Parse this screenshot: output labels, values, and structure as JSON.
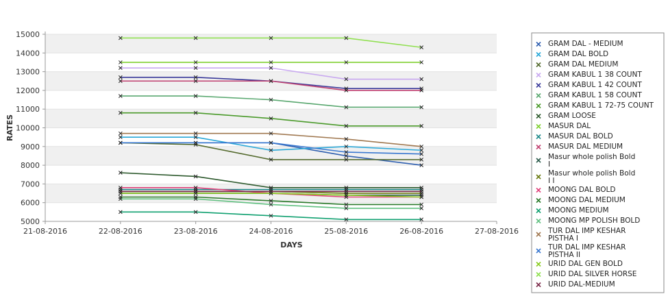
{
  "chart_data": {
    "type": "line",
    "title": "",
    "xlabel": "DAYS",
    "ylabel": "RATES",
    "x_ticks": [
      "21-08-2016",
      "22-08-2016",
      "23-08-2016",
      "24-08-2016",
      "25-08-2016",
      "26-08-2016",
      "27-08-2016"
    ],
    "categories": [
      "22-08-2016",
      "23-08-2016",
      "24-08-2016",
      "25-08-2016",
      "26-08-2016"
    ],
    "ylim": [
      5000,
      15000
    ],
    "y_ticks": [
      5000,
      6000,
      7000,
      8000,
      9000,
      10000,
      11000,
      12000,
      13000,
      14000,
      15000
    ],
    "grid": "horizontal bands",
    "legend_position": "right",
    "series": [
      {
        "name": "GRAM DAL - MEDIUM",
        "color": "#3060b0",
        "values": [
          9200,
          9200,
          9200,
          8500,
          8000
        ]
      },
      {
        "name": "GRAM DAL BOLD",
        "color": "#2aa8d8",
        "values": [
          9500,
          9500,
          8800,
          9000,
          8800
        ]
      },
      {
        "name": "GRAM DAL MEDIUM",
        "color": "#556b2f",
        "values": [
          9200,
          9100,
          8300,
          8300,
          8300
        ]
      },
      {
        "name": "GRAM KABUL 1 38 COUNT",
        "color": "#c8a8f0",
        "values": [
          13200,
          13200,
          13200,
          12600,
          12600
        ]
      },
      {
        "name": "GRAM KABUL 1 42 COUNT",
        "color": "#3a3a9a",
        "values": [
          12700,
          12700,
          12500,
          12100,
          12100
        ]
      },
      {
        "name": "GRAM KABUL 1 58 COUNT",
        "color": "#5aa870",
        "values": [
          11700,
          11700,
          11500,
          11100,
          11100
        ]
      },
      {
        "name": "GRAM KABUL 1 72-75 COUNT",
        "color": "#4a9a2a",
        "values": [
          10800,
          10800,
          10500,
          10100,
          10100
        ]
      },
      {
        "name": "GRAM LOOSE",
        "color": "#2e5a2e",
        "values": [
          7600,
          7400,
          6800,
          6800,
          6800
        ]
      },
      {
        "name": "MASUR DAL",
        "color": "#80d030",
        "values": [
          13500,
          13500,
          13500,
          13500,
          13500
        ]
      },
      {
        "name": "MASUR DAL BOLD",
        "color": "#1e8a8a",
        "values": [
          6700,
          6700,
          6700,
          6700,
          6700
        ]
      },
      {
        "name": "MASUR DAL MEDIUM",
        "color": "#c04070",
        "values": [
          12500,
          12500,
          12500,
          12000,
          12000
        ]
      },
      {
        "name": "Masur whole polish Bold I",
        "color": "#2a5a4a",
        "values": [
          6500,
          6500,
          6500,
          6400,
          6400
        ]
      },
      {
        "name": "Masur whole polish Bold I I",
        "color": "#6a7a10",
        "values": [
          6600,
          6600,
          6600,
          6500,
          6500
        ]
      },
      {
        "name": "MOONG DAL BOLD",
        "color": "#e0407a",
        "values": [
          6800,
          6800,
          6500,
          6300,
          6300
        ]
      },
      {
        "name": "MOONG DAL MEDIUM",
        "color": "#2a7a2a",
        "values": [
          6300,
          6300,
          6100,
          5900,
          5900
        ]
      },
      {
        "name": "MOONG MEDIUM",
        "color": "#10a070",
        "values": [
          5500,
          5500,
          5300,
          5100,
          5100
        ]
      },
      {
        "name": "MOONG MP POLISH BOLD",
        "color": "#60c080",
        "values": [
          6200,
          6200,
          5900,
          5700,
          5700
        ]
      },
      {
        "name": "TUR DAL IMP KESHAR PISTHA I",
        "color": "#a07850",
        "values": [
          9700,
          9700,
          9700,
          9400,
          9000
        ]
      },
      {
        "name": "TUR DAL IMP KESHAR PISTHA II",
        "color": "#3a78d0",
        "values": [
          9200,
          9200,
          9200,
          8700,
          8600
        ]
      },
      {
        "name": "URID DAL GEN BOLD",
        "color": "#8acc20",
        "values": [
          6500,
          6500,
          6500,
          6400,
          6300
        ]
      },
      {
        "name": "URID DAL SILVER HORSE",
        "color": "#90e050",
        "values": [
          14800,
          14800,
          14800,
          14800,
          14300
        ]
      },
      {
        "name": "URID DAL-MEDIUM",
        "color": "#7a2a4a",
        "values": [
          6600,
          6600,
          6600,
          6600,
          6600
        ]
      }
    ]
  }
}
